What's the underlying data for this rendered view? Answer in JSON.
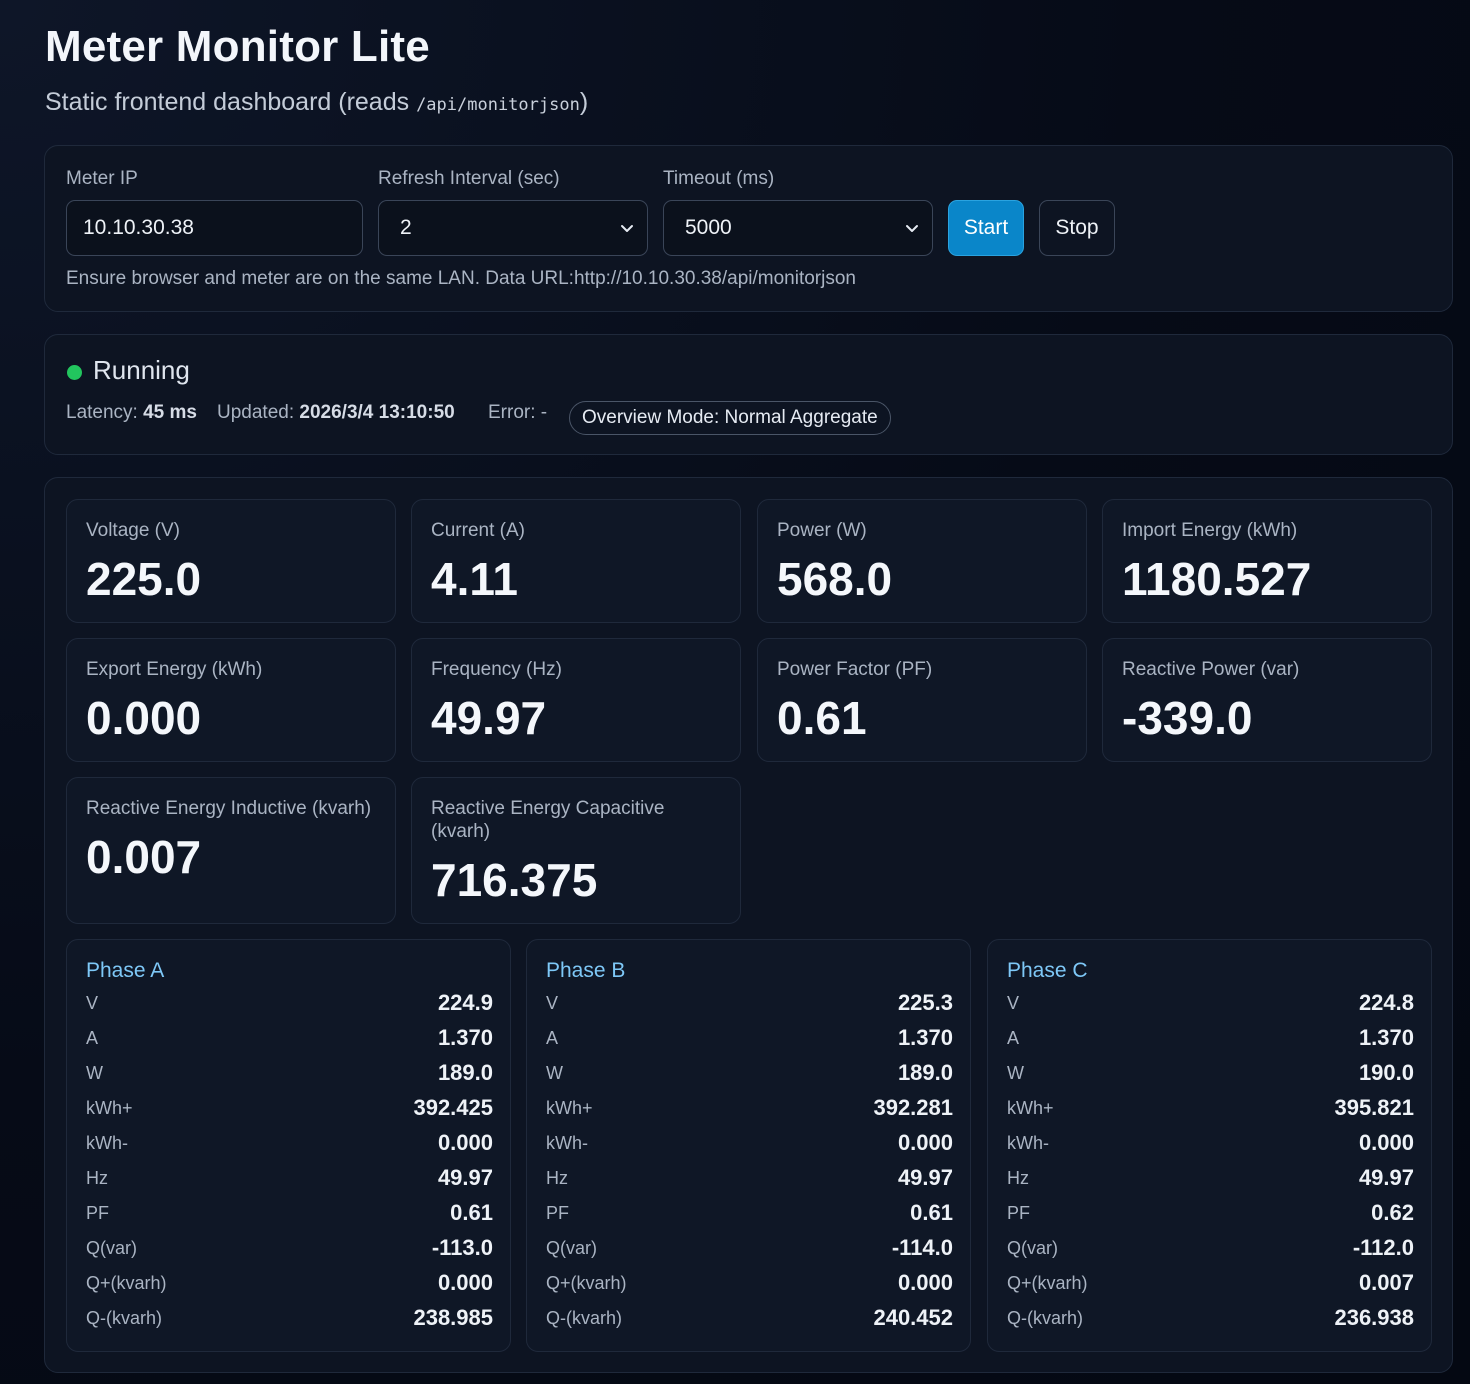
{
  "header": {
    "title": "Meter Monitor Lite",
    "subtitle_prefix": "Static frontend dashboard (reads ",
    "subtitle_code": "/api/monitorjson",
    "subtitle_suffix": ")"
  },
  "controls": {
    "ip_label": "Meter IP",
    "ip_value": "10.10.30.38",
    "refresh_label": "Refresh Interval (sec)",
    "refresh_value": "2",
    "timeout_label": "Timeout (ms)",
    "timeout_value": "5000",
    "start_label": "Start",
    "stop_label": "Stop",
    "hint": "Ensure browser and meter are on the same LAN. Data URL:http://10.10.30.38/api/monitorjson"
  },
  "status": {
    "state": "Running",
    "latency_label": "Latency:",
    "latency_value": "45 ms",
    "updated_label": "Updated:",
    "updated_value": "2026/3/4 13:10:50",
    "error_label": "Error:",
    "error_value": "-",
    "mode": "Overview Mode: Normal Aggregate",
    "dot_color": "#22c55e"
  },
  "metrics": [
    {
      "label": "Voltage (V)",
      "value": "225.0"
    },
    {
      "label": "Current (A)",
      "value": "4.11"
    },
    {
      "label": "Power (W)",
      "value": "568.0"
    },
    {
      "label": "Import Energy (kWh)",
      "value": "1180.527"
    },
    {
      "label": "Export Energy (kWh)",
      "value": "0.000"
    },
    {
      "label": "Frequency (Hz)",
      "value": "49.97"
    },
    {
      "label": "Power Factor (PF)",
      "value": "0.61"
    },
    {
      "label": "Reactive Power (var)",
      "value": "-339.0"
    },
    {
      "label": "Reactive Energy Inductive (kvarh)",
      "value": "0.007"
    },
    {
      "label": "Reactive Energy Capacitive (kvarh)",
      "value": "716.375"
    }
  ],
  "phases": [
    {
      "title": "Phase A",
      "rows": [
        {
          "k": "V",
          "v": "224.9"
        },
        {
          "k": "A",
          "v": "1.370"
        },
        {
          "k": "W",
          "v": "189.0"
        },
        {
          "k": "kWh+",
          "v": "392.425"
        },
        {
          "k": "kWh-",
          "v": "0.000"
        },
        {
          "k": "Hz",
          "v": "49.97"
        },
        {
          "k": "PF",
          "v": "0.61"
        },
        {
          "k": "Q(var)",
          "v": "-113.0"
        },
        {
          "k": "Q+(kvarh)",
          "v": "0.000"
        },
        {
          "k": "Q-(kvarh)",
          "v": "238.985"
        }
      ]
    },
    {
      "title": "Phase B",
      "rows": [
        {
          "k": "V",
          "v": "225.3"
        },
        {
          "k": "A",
          "v": "1.370"
        },
        {
          "k": "W",
          "v": "189.0"
        },
        {
          "k": "kWh+",
          "v": "392.281"
        },
        {
          "k": "kWh-",
          "v": "0.000"
        },
        {
          "k": "Hz",
          "v": "49.97"
        },
        {
          "k": "PF",
          "v": "0.61"
        },
        {
          "k": "Q(var)",
          "v": "-114.0"
        },
        {
          "k": "Q+(kvarh)",
          "v": "0.000"
        },
        {
          "k": "Q-(kvarh)",
          "v": "240.452"
        }
      ]
    },
    {
      "title": "Phase C",
      "rows": [
        {
          "k": "V",
          "v": "224.8"
        },
        {
          "k": "A",
          "v": "1.370"
        },
        {
          "k": "W",
          "v": "190.0"
        },
        {
          "k": "kWh+",
          "v": "395.821"
        },
        {
          "k": "kWh-",
          "v": "0.000"
        },
        {
          "k": "Hz",
          "v": "49.97"
        },
        {
          "k": "PF",
          "v": "0.62"
        },
        {
          "k": "Q(var)",
          "v": "-112.0"
        },
        {
          "k": "Q+(kvarh)",
          "v": "0.007"
        },
        {
          "k": "Q-(kvarh)",
          "v": "236.938"
        }
      ]
    }
  ]
}
